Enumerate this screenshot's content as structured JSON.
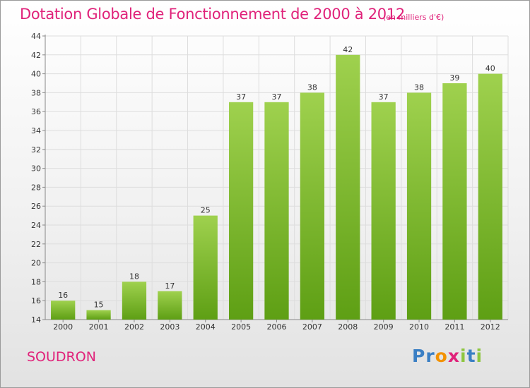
{
  "header": {
    "title": "Dotation Globale de Fonctionnement de 2000 à 2012",
    "unit": "(en milliers d'€)"
  },
  "footer": {
    "commune": "SOUDRON",
    "brand_letters": [
      {
        "ch": "P",
        "color": "#3a7fc4"
      },
      {
        "ch": "r",
        "color": "#3a7fc4"
      },
      {
        "ch": "o",
        "color": "#f39200"
      },
      {
        "ch": "x",
        "color": "#e0227a"
      },
      {
        "ch": "i",
        "color": "#8dc63f"
      },
      {
        "ch": "t",
        "color": "#3a7fc4"
      },
      {
        "ch": "i",
        "color": "#8dc63f"
      }
    ]
  },
  "chart_data": {
    "type": "bar",
    "categories": [
      "2000",
      "2001",
      "2002",
      "2003",
      "2004",
      "2005",
      "2006",
      "2007",
      "2008",
      "2009",
      "2010",
      "2011",
      "2012"
    ],
    "values": [
      16,
      15,
      18,
      17,
      25,
      37,
      37,
      38,
      42,
      37,
      38,
      39,
      40
    ],
    "title": "Dotation Globale de Fonctionnement de 2000 à 2012",
    "xlabel": "",
    "ylabel": "",
    "ylim": [
      14,
      44
    ],
    "yticks": [
      14,
      16,
      18,
      20,
      22,
      24,
      26,
      28,
      30,
      32,
      34,
      36,
      38,
      40,
      42,
      44
    ],
    "grid": true,
    "colors": {
      "bar_top": "#9fd14e",
      "bar_bottom": "#5e9f14",
      "accent": "#e0227a"
    }
  }
}
